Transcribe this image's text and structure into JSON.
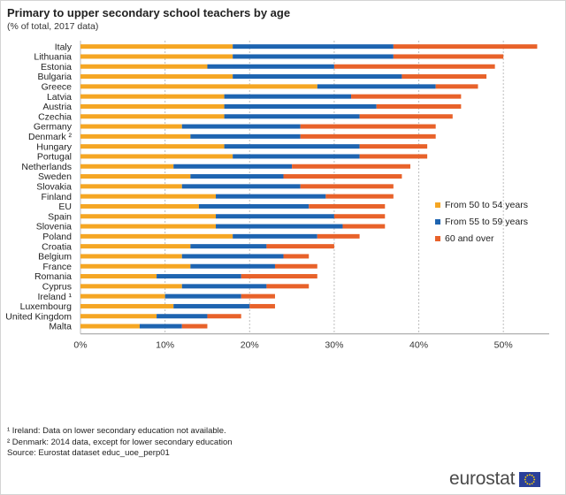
{
  "title": "Primary to upper secondary school teachers by age",
  "subtitle": "(% of total, 2017 data)",
  "colors": {
    "s1": "#f5a623",
    "s2": "#1e64b0",
    "s3": "#e8622a",
    "grid": "#bdbdbd"
  },
  "chart_data": {
    "type": "bar",
    "orientation": "horizontal",
    "stacked": true,
    "categories": [
      "Italy",
      "Lithuania",
      "Estonia",
      "Bulgaria",
      "Greece",
      "Latvia",
      "Austria",
      "Czechia",
      "Germany",
      "Denmark ²",
      "Hungary",
      "Portugal",
      "Netherlands",
      "Sweden",
      "Slovakia",
      "Finland",
      "EU",
      "Spain",
      "Slovenia",
      "Poland",
      "Croatia",
      "Belgium",
      "France",
      "Romania",
      "Cyprus",
      "Ireland ¹",
      "Luxembourg",
      "United Kingdom",
      "Malta"
    ],
    "series": [
      {
        "name": "From 50 to 54 years",
        "values": [
          18,
          18,
          15,
          18,
          28,
          17,
          17,
          17,
          12,
          13,
          17,
          18,
          11,
          13,
          12,
          16,
          14,
          16,
          16,
          18,
          13,
          12,
          13,
          9,
          12,
          10,
          11,
          9,
          7
        ]
      },
      {
        "name": "From 55 to 59 years",
        "values": [
          19,
          19,
          15,
          20,
          14,
          15,
          18,
          16,
          14,
          13,
          16,
          15,
          14,
          11,
          14,
          13,
          13,
          14,
          15,
          10,
          9,
          12,
          10,
          10,
          10,
          9,
          9,
          6,
          5
        ]
      },
      {
        "name": "60 and over",
        "values": [
          17,
          13,
          19,
          10,
          5,
          13,
          10,
          11,
          16,
          16,
          8,
          8,
          14,
          14,
          11,
          8,
          9,
          6,
          5,
          5,
          8,
          3,
          5,
          9,
          5,
          4,
          3,
          4,
          3
        ]
      }
    ],
    "xlim": [
      0,
      55
    ],
    "ticks": [
      "0%",
      "10%",
      "20%",
      "30%",
      "40%",
      "50%"
    ],
    "tick_values": [
      0,
      10,
      20,
      30,
      40,
      50
    ],
    "grid": true,
    "legend_position": "right"
  },
  "footnotes": [
    "¹ Ireland: Data on lower secondary education not available.",
    "² Denmark: 2014 data, except for lower secondary education",
    "Source: Eurostat dataset educ_uoe_perp01"
  ],
  "logo": {
    "text": "eurostat",
    "icon": "eu-flag-icon"
  }
}
